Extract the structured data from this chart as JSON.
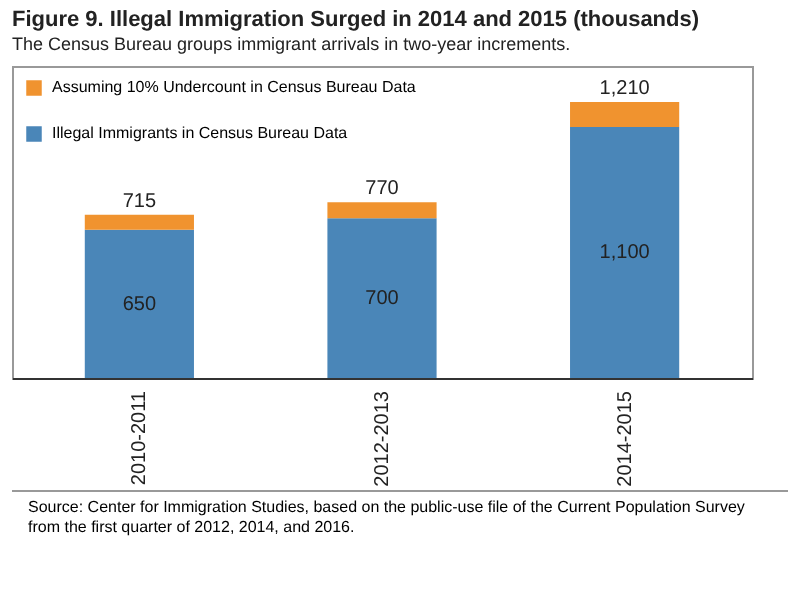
{
  "chart_data": {
    "type": "bar",
    "title": "Figure 9. Illegal Immigration Surged in 2014 and 2015 (thousands)",
    "subtitle": "The Census Bureau groups immigrant arrivals in two-year increments.",
    "categories": [
      "2010-2011",
      "2012-2013",
      "2014-2015"
    ],
    "stacked": true,
    "series": [
      {
        "name": "Illegal Immigrants in Census Bureau Data",
        "color": "#4a86b8",
        "values": [
          650,
          700,
          1100
        ],
        "value_labels": [
          "650",
          "700",
          "1,100"
        ]
      },
      {
        "name": "Assuming 10% Undercount in Census Bureau Data",
        "color": "#f0932f",
        "values": [
          65,
          70,
          110
        ]
      }
    ],
    "totals": [
      "715",
      "770",
      "1,210"
    ],
    "legend": "top left",
    "tick_labels": "x",
    "grid": false,
    "annotations": [
      "Source: Center for Immigration Studies, based on the public-use file of the Current Population Survey from the first quarter of 2012, 2014, and 2016."
    ]
  }
}
